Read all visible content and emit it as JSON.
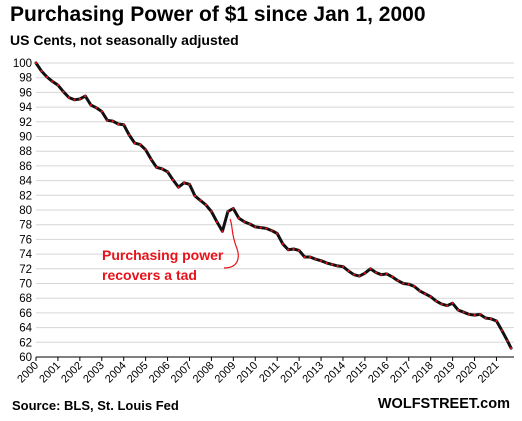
{
  "chart_data": {
    "type": "line",
    "title": "Purchasing Power of $1 since Jan 1, 2000",
    "subtitle": "US Cents, not seasonally adjusted",
    "xlabel": "",
    "ylabel": "",
    "ylim": [
      60,
      100
    ],
    "yticks": [
      60,
      62,
      64,
      66,
      68,
      70,
      72,
      74,
      76,
      78,
      80,
      82,
      84,
      86,
      88,
      90,
      92,
      94,
      96,
      98,
      100
    ],
    "xlim": [
      2000,
      2021.8
    ],
    "xticks": [
      "2000",
      "2001",
      "2002",
      "2003",
      "2004",
      "2005",
      "2006",
      "2007",
      "2008",
      "2009",
      "2010",
      "2011",
      "2012",
      "2013",
      "2014",
      "2015",
      "2016",
      "2017",
      "2018",
      "2019",
      "2020",
      "2021"
    ],
    "grid": "horizontal",
    "annotation": {
      "lines": [
        "Purchasing power",
        "recovers a tad"
      ],
      "color": "#e8121a"
    },
    "series": [
      {
        "line_color": "#111111",
        "x": [
          2000.0,
          2000.25,
          2000.5,
          2000.75,
          2001.0,
          2001.25,
          2001.5,
          2001.75,
          2002.0,
          2002.25,
          2002.5,
          2002.75,
          2003.0,
          2003.25,
          2003.5,
          2003.75,
          2004.0,
          2004.25,
          2004.5,
          2004.75,
          2005.0,
          2005.25,
          2005.5,
          2005.75,
          2006.0,
          2006.25,
          2006.5,
          2006.75,
          2007.0,
          2007.25,
          2007.5,
          2007.75,
          2008.0,
          2008.25,
          2008.5,
          2008.75,
          2009.0,
          2009.25,
          2009.5,
          2009.75,
          2010.0,
          2010.25,
          2010.5,
          2010.75,
          2011.0,
          2011.25,
          2011.5,
          2011.75,
          2012.0,
          2012.25,
          2012.5,
          2012.75,
          2013.0,
          2013.25,
          2013.5,
          2013.75,
          2014.0,
          2014.25,
          2014.5,
          2014.75,
          2015.0,
          2015.25,
          2015.5,
          2015.75,
          2016.0,
          2016.25,
          2016.5,
          2016.75,
          2017.0,
          2017.25,
          2017.5,
          2017.75,
          2018.0,
          2018.25,
          2018.5,
          2018.75,
          2019.0,
          2019.25,
          2019.5,
          2019.75,
          2020.0,
          2020.25,
          2020.5,
          2020.75,
          2021.0,
          2021.25,
          2021.5,
          2021.67
        ],
        "y": [
          100.0,
          98.9,
          98.1,
          97.5,
          97.0,
          96.1,
          95.3,
          95.0,
          95.1,
          95.5,
          94.3,
          93.9,
          93.4,
          92.2,
          92.1,
          91.7,
          91.6,
          90.2,
          89.1,
          88.9,
          88.2,
          86.9,
          85.8,
          85.6,
          85.2,
          84.1,
          83.1,
          83.7,
          83.5,
          81.9,
          81.3,
          80.7,
          79.8,
          78.4,
          77.1,
          79.8,
          80.2,
          78.9,
          78.4,
          78.1,
          77.7,
          77.6,
          77.5,
          77.2,
          76.8,
          75.4,
          74.6,
          74.7,
          74.5,
          73.6,
          73.6,
          73.3,
          73.1,
          72.8,
          72.6,
          72.4,
          72.3,
          71.7,
          71.2,
          71.0,
          71.4,
          72.0,
          71.5,
          71.2,
          71.3,
          70.9,
          70.4,
          70.0,
          69.9,
          69.6,
          69.0,
          68.6,
          68.2,
          67.6,
          67.2,
          67.0,
          67.3,
          66.4,
          66.1,
          65.8,
          65.7,
          65.8,
          65.3,
          65.2,
          64.9,
          63.6,
          62.2,
          61.2
        ]
      }
    ]
  },
  "footer": {
    "source": "Source: BLS, St. Louis Fed",
    "brand": "WOLFSTREET.com"
  }
}
